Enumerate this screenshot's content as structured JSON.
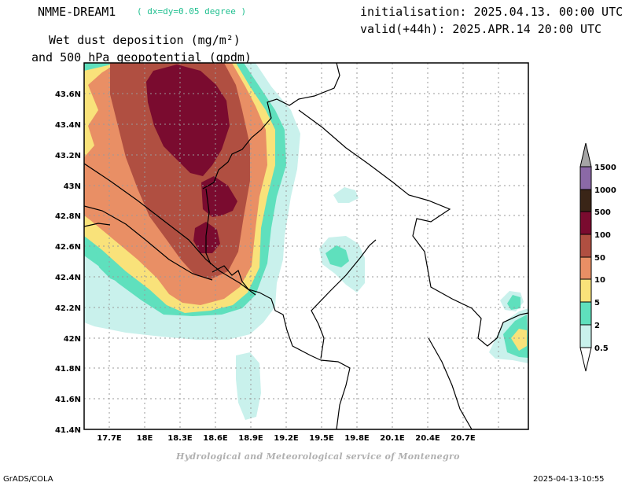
{
  "header": {
    "model": "NMME-DREAM1",
    "resolution": "( dx=dy=0.05 degree )",
    "initialisation": "initialisation: 2025.04.13. 00:00 UTC",
    "valid": "valid(+44h): 2025.APR.14 20:00 UTC",
    "title_line1": "Wet dust deposition (mg/m²)",
    "title_line2": "and 500 hPa geopotential (gpdm)"
  },
  "map": {
    "lat_labels": [
      "43.6N",
      "43.4N",
      "43.2N",
      "43N",
      "42.8N",
      "42.6N",
      "42.4N",
      "42.2N",
      "42N",
      "41.8N",
      "41.6N",
      "41.4N"
    ],
    "lon_labels": [
      "17.7E",
      "18E",
      "18.3E",
      "18.6E",
      "18.9E",
      "19.2E",
      "19.5E",
      "19.8E",
      "20.1E",
      "20.4E",
      "20.7E"
    ],
    "deposition_colors": {
      "0.5": "#c9f1ec",
      "2": "#5fe0bd",
      "5": "#f9e27a",
      "10": "#e98f65",
      "50": "#b04f41",
      "100": "#7a0b2f",
      "500": "#3a2517",
      "1000": "#8b69a6",
      "1500": "#a5a5a5"
    }
  },
  "colorbar": {
    "labels": [
      "1500",
      "1000",
      "500",
      "100",
      "50",
      "10",
      "5",
      "2",
      "0.5"
    ],
    "colors": [
      "#8b69a6",
      "#3a2517",
      "#7a0b2f",
      "#b04f41",
      "#e98f65",
      "#f9e27a",
      "#5fe0bd",
      "#c9f1ec"
    ],
    "over_color": "#a5a5a5",
    "under_color": "#ffffff"
  },
  "footer": {
    "credit": "Hydrological and Meteorological service of Montenegro",
    "software": "GrADS/COLA",
    "timestamp": "2025-04-13-10:55"
  }
}
